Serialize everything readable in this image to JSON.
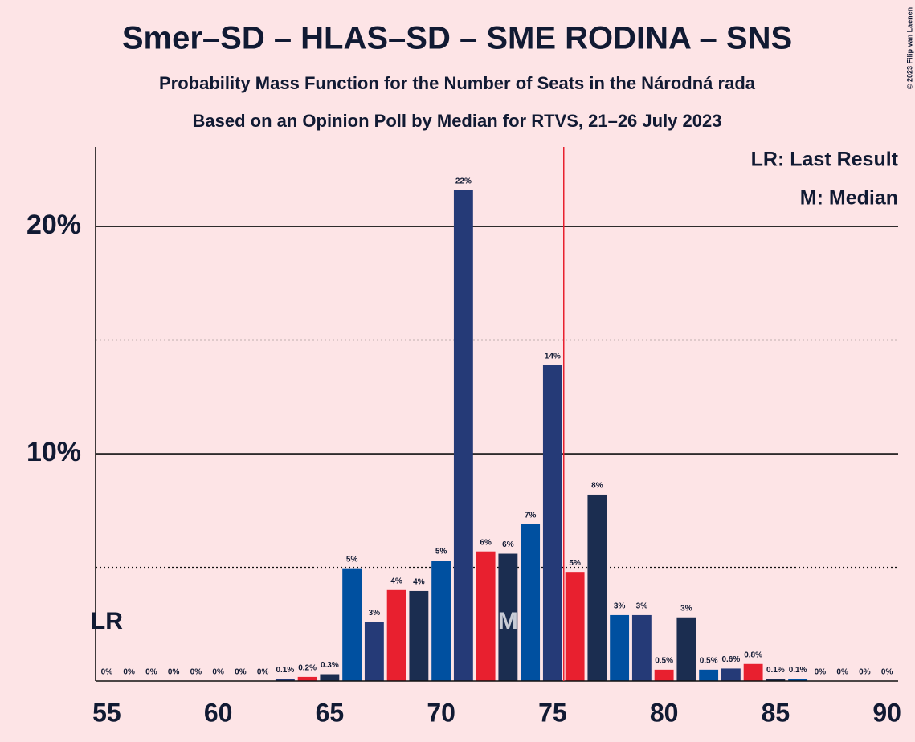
{
  "chart_data": {
    "type": "bar",
    "title": "Smer–SD – HLAS–SD – SME RODINA – SNS",
    "subtitle": "Probability Mass Function for the Number of Seats in the Národná rada",
    "subtitle2": "Based on an Opinion Poll by Median for RTVS, 21–26 July 2023",
    "copyright": "© 2023 Filip van Laenen",
    "legend": [
      "LR: Last Result",
      "M: Median"
    ],
    "x": [
      55,
      56,
      57,
      58,
      59,
      60,
      61,
      62,
      63,
      64,
      65,
      66,
      67,
      68,
      69,
      70,
      71,
      72,
      73,
      74,
      75,
      76,
      77,
      78,
      79,
      80,
      81,
      82,
      83,
      84,
      85,
      86,
      87,
      88,
      89,
      90
    ],
    "values": [
      0,
      0,
      0,
      0,
      0,
      0,
      0,
      0,
      0.1,
      0.18,
      0.3,
      4.96,
      2.6,
      4.0,
      3.96,
      5.3,
      21.6,
      5.7,
      5.6,
      6.9,
      13.9,
      4.8,
      8.2,
      2.9,
      2.9,
      0.5,
      2.8,
      0.5,
      0.55,
      0.75,
      0.1,
      0.1,
      0,
      0,
      0,
      0
    ],
    "value_labels": [
      "0%",
      "0%",
      "0%",
      "0%",
      "0%",
      "0%",
      "0%",
      "0%",
      "0.1%",
      "0.2%",
      "0.3%",
      "5%",
      "3%",
      "4%",
      "4%",
      "5%",
      "22%",
      "6%",
      "6%",
      "7%",
      "14%",
      "5%",
      "8%",
      "3%",
      "3%",
      "0.5%",
      "3%",
      "0.5%",
      "0.6%",
      "0.8%",
      "0.1%",
      "0.1%",
      "0%",
      "0%",
      "0%",
      "0%"
    ],
    "colors": [
      "#0050a0",
      "#253a77",
      "#e8202f",
      "#1b2d50",
      "#0050a0",
      "#253a77",
      "#e8202f",
      "#1b2d50",
      "#253a77",
      "#e8202f",
      "#1b2d50",
      "#0050a0",
      "#253a77",
      "#e8202f",
      "#1b2d50",
      "#0050a0",
      "#253a77",
      "#e8202f",
      "#1b2d50",
      "#0050a0",
      "#253a77",
      "#e8202f",
      "#1b2d50",
      "#0050a0",
      "#253a77",
      "#e8202f",
      "#1b2d50",
      "#0050a0",
      "#253a77",
      "#e8202f",
      "#1b2d50",
      "#0050a0",
      "#253a77",
      "#e8202f",
      "#1b2d50",
      "#0050a0"
    ],
    "xlim": [
      54.5,
      90.5
    ],
    "xticks": [
      55,
      60,
      65,
      70,
      75,
      80,
      85,
      90
    ],
    "ylim": [
      0,
      23.5
    ],
    "yticks": [
      {
        "value": 10,
        "label": "10%"
      },
      {
        "value": 20,
        "label": "20%"
      }
    ],
    "minor_gridlines": [
      5,
      15
    ],
    "grid": true,
    "majority_line": 75.5,
    "majority_color": "#e8202f",
    "median": 73,
    "median_label": "M",
    "last_result": 55,
    "last_result_label": "LR"
  }
}
